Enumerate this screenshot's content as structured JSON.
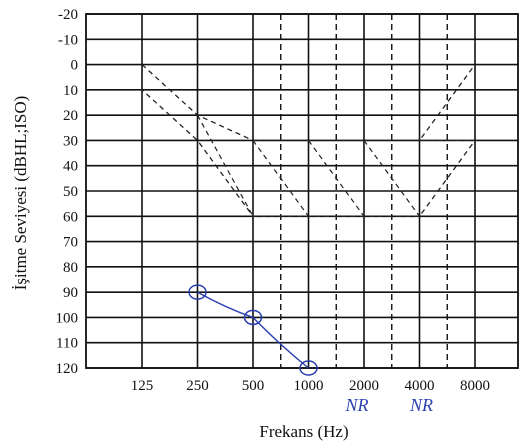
{
  "chart_data": {
    "type": "line",
    "title": "",
    "xlabel": "Frekans (Hz)",
    "ylabel": "İşitme Seviyesi (dBHL;ISO)",
    "x_categories": [
      "125",
      "250",
      "500",
      "1000",
      "2000",
      "4000",
      "8000"
    ],
    "y_ticks": [
      -20,
      -10,
      0,
      10,
      20,
      30,
      40,
      50,
      60,
      70,
      80,
      90,
      100,
      110,
      120
    ],
    "ylim": [
      -20,
      120
    ],
    "y_inverted": true,
    "grid": true,
    "series": [
      {
        "marker": "circle",
        "color": "#2a3fb0",
        "points": [
          {
            "x": "250",
            "y": 90
          },
          {
            "x": "500",
            "y": 100
          },
          {
            "x": "1000",
            "y": 120
          }
        ]
      }
    ],
    "speech_banana_outline": {
      "style": "dashed",
      "upper": [
        {
          "x": "125",
          "y": 0
        },
        {
          "x": "250",
          "y": 20
        },
        {
          "x": "500",
          "y": 30
        },
        {
          "x": "1000",
          "y": 30
        },
        {
          "x": "2000",
          "y": 30
        },
        {
          "x": "4000",
          "y": 30
        },
        {
          "x": "8000",
          "y": 0
        }
      ],
      "lower": [
        {
          "x": "125",
          "y": 10
        },
        {
          "x": "250",
          "y": 30
        },
        {
          "x": "500",
          "y": 60
        },
        {
          "x": "1000",
          "y": 60
        },
        {
          "x": "2000",
          "y": 60
        },
        {
          "x": "4000",
          "y": 60
        },
        {
          "x": "8000",
          "y": 30
        }
      ]
    },
    "annotations": [
      {
        "text": "NR",
        "x": "2000"
      },
      {
        "text": "NR",
        "x": "4000"
      }
    ]
  }
}
